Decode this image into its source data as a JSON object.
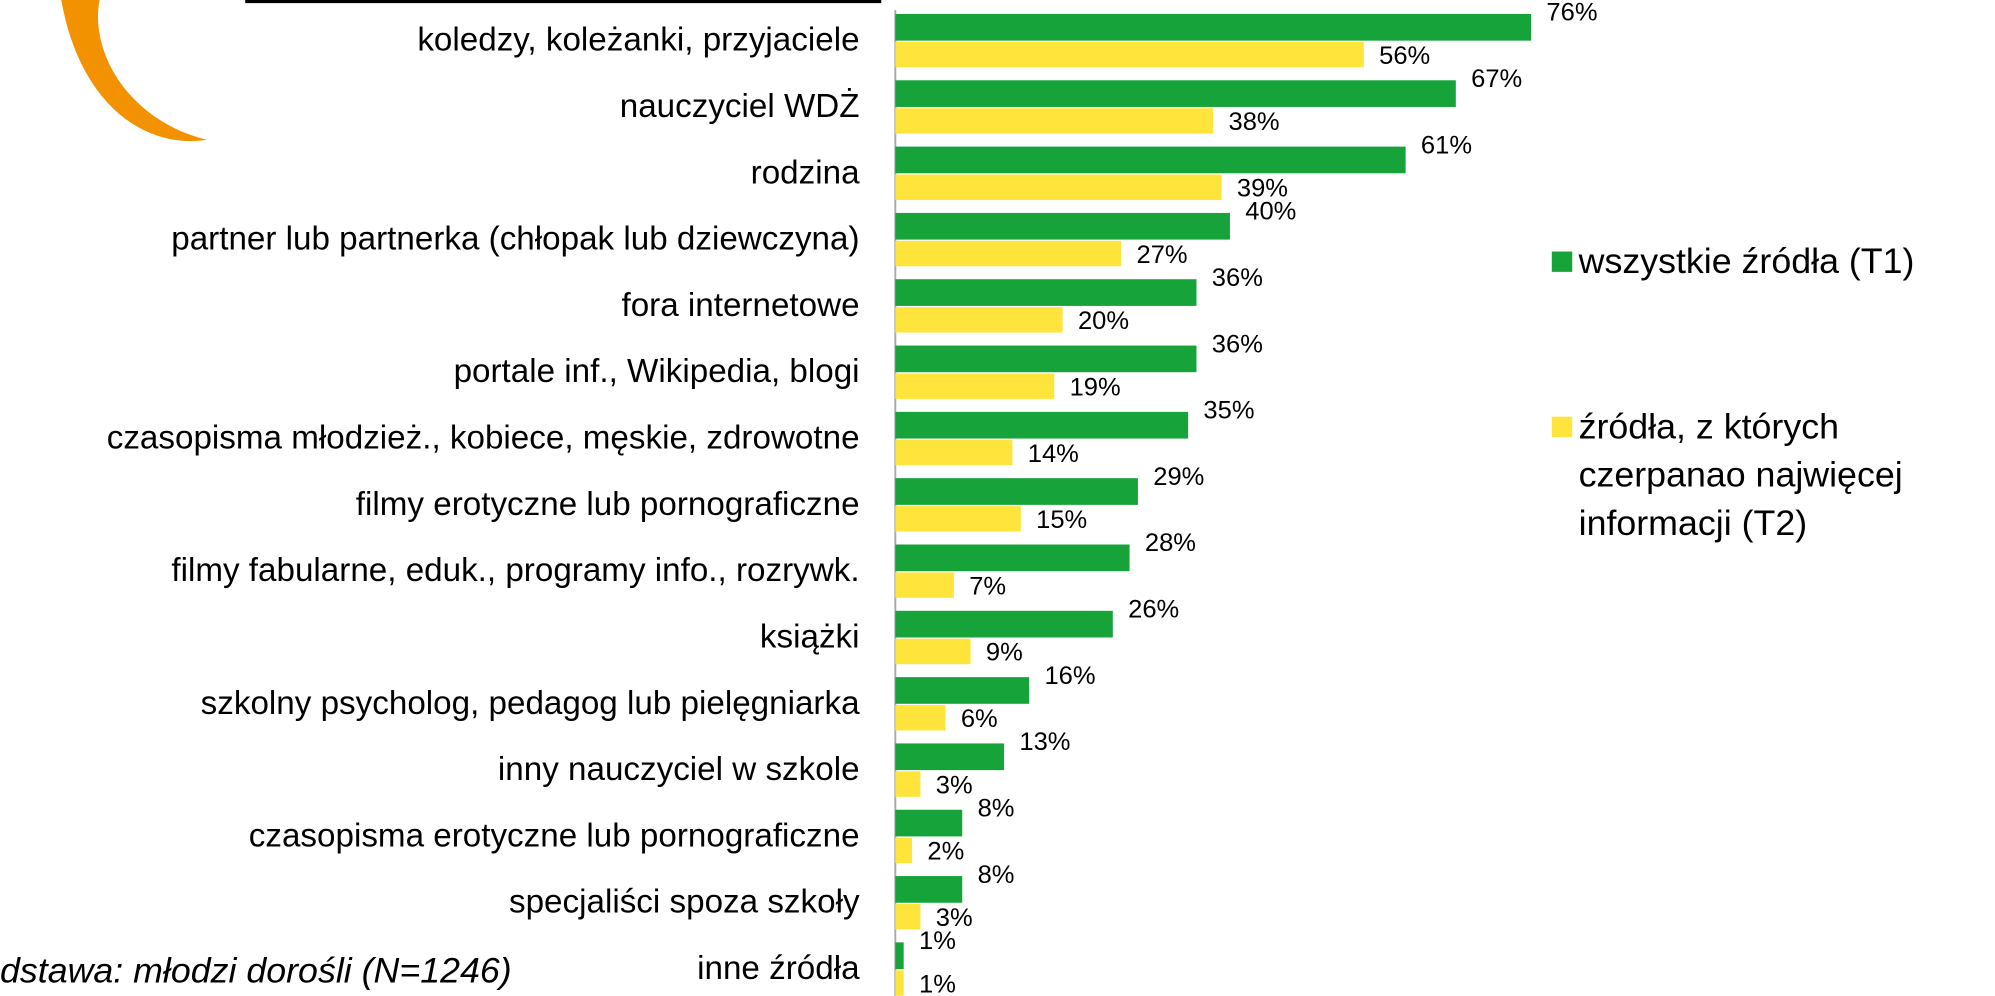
{
  "chart_data": {
    "type": "bar",
    "orientation": "horizontal",
    "categories": [
      "koledzy, koleżanki, przyjaciele",
      "nauczyciel WDŻ",
      "rodzina",
      "partner lub partnerka (chłopak lub dziewczyna)",
      "fora internetowe",
      "portale inf., Wikipedia, blogi",
      "czasopisma młodzież., kobiece, męskie, zdrowotne",
      "filmy erotyczne lub pornograficzne",
      "filmy fabularne, eduk., programy info., rozrywk.",
      "książki",
      "szkolny psycholog, pedagog lub pielęgniarka",
      "inny nauczyciel w szkole",
      "czasopisma erotyczne lub pornograficzne",
      "specjaliści spoza szkoły",
      "inne źródła"
    ],
    "series": [
      {
        "name": "wszystkie źródła (T1)",
        "color": "#16a43a",
        "values": [
          76,
          67,
          61,
          40,
          36,
          36,
          35,
          29,
          28,
          26,
          16,
          13,
          8,
          8,
          1
        ],
        "value_labels": [
          "76%",
          "67%",
          "61%",
          "40%",
          "36%",
          "36%",
          "35%",
          "29%",
          "28%",
          "26%",
          "16%",
          "13%",
          "8%",
          "8%",
          "1%"
        ]
      },
      {
        "name": "źródła, z których czerpanao najwięcej informacji (T2)",
        "color": "#ffe53b",
        "values": [
          56,
          38,
          39,
          27,
          20,
          19,
          14,
          15,
          7,
          9,
          6,
          3,
          2,
          3,
          1
        ],
        "value_labels": [
          "56%",
          "38%",
          "39%",
          "27%",
          "20%",
          "19%",
          "14%",
          "15%",
          "7%",
          "9%",
          "6%",
          "3%",
          "2%",
          "3%",
          "1%"
        ]
      }
    ],
    "xlim": [
      0,
      100
    ],
    "legend": "right",
    "footnote": "dstawa: młodzi dorośli (N=1246)"
  }
}
